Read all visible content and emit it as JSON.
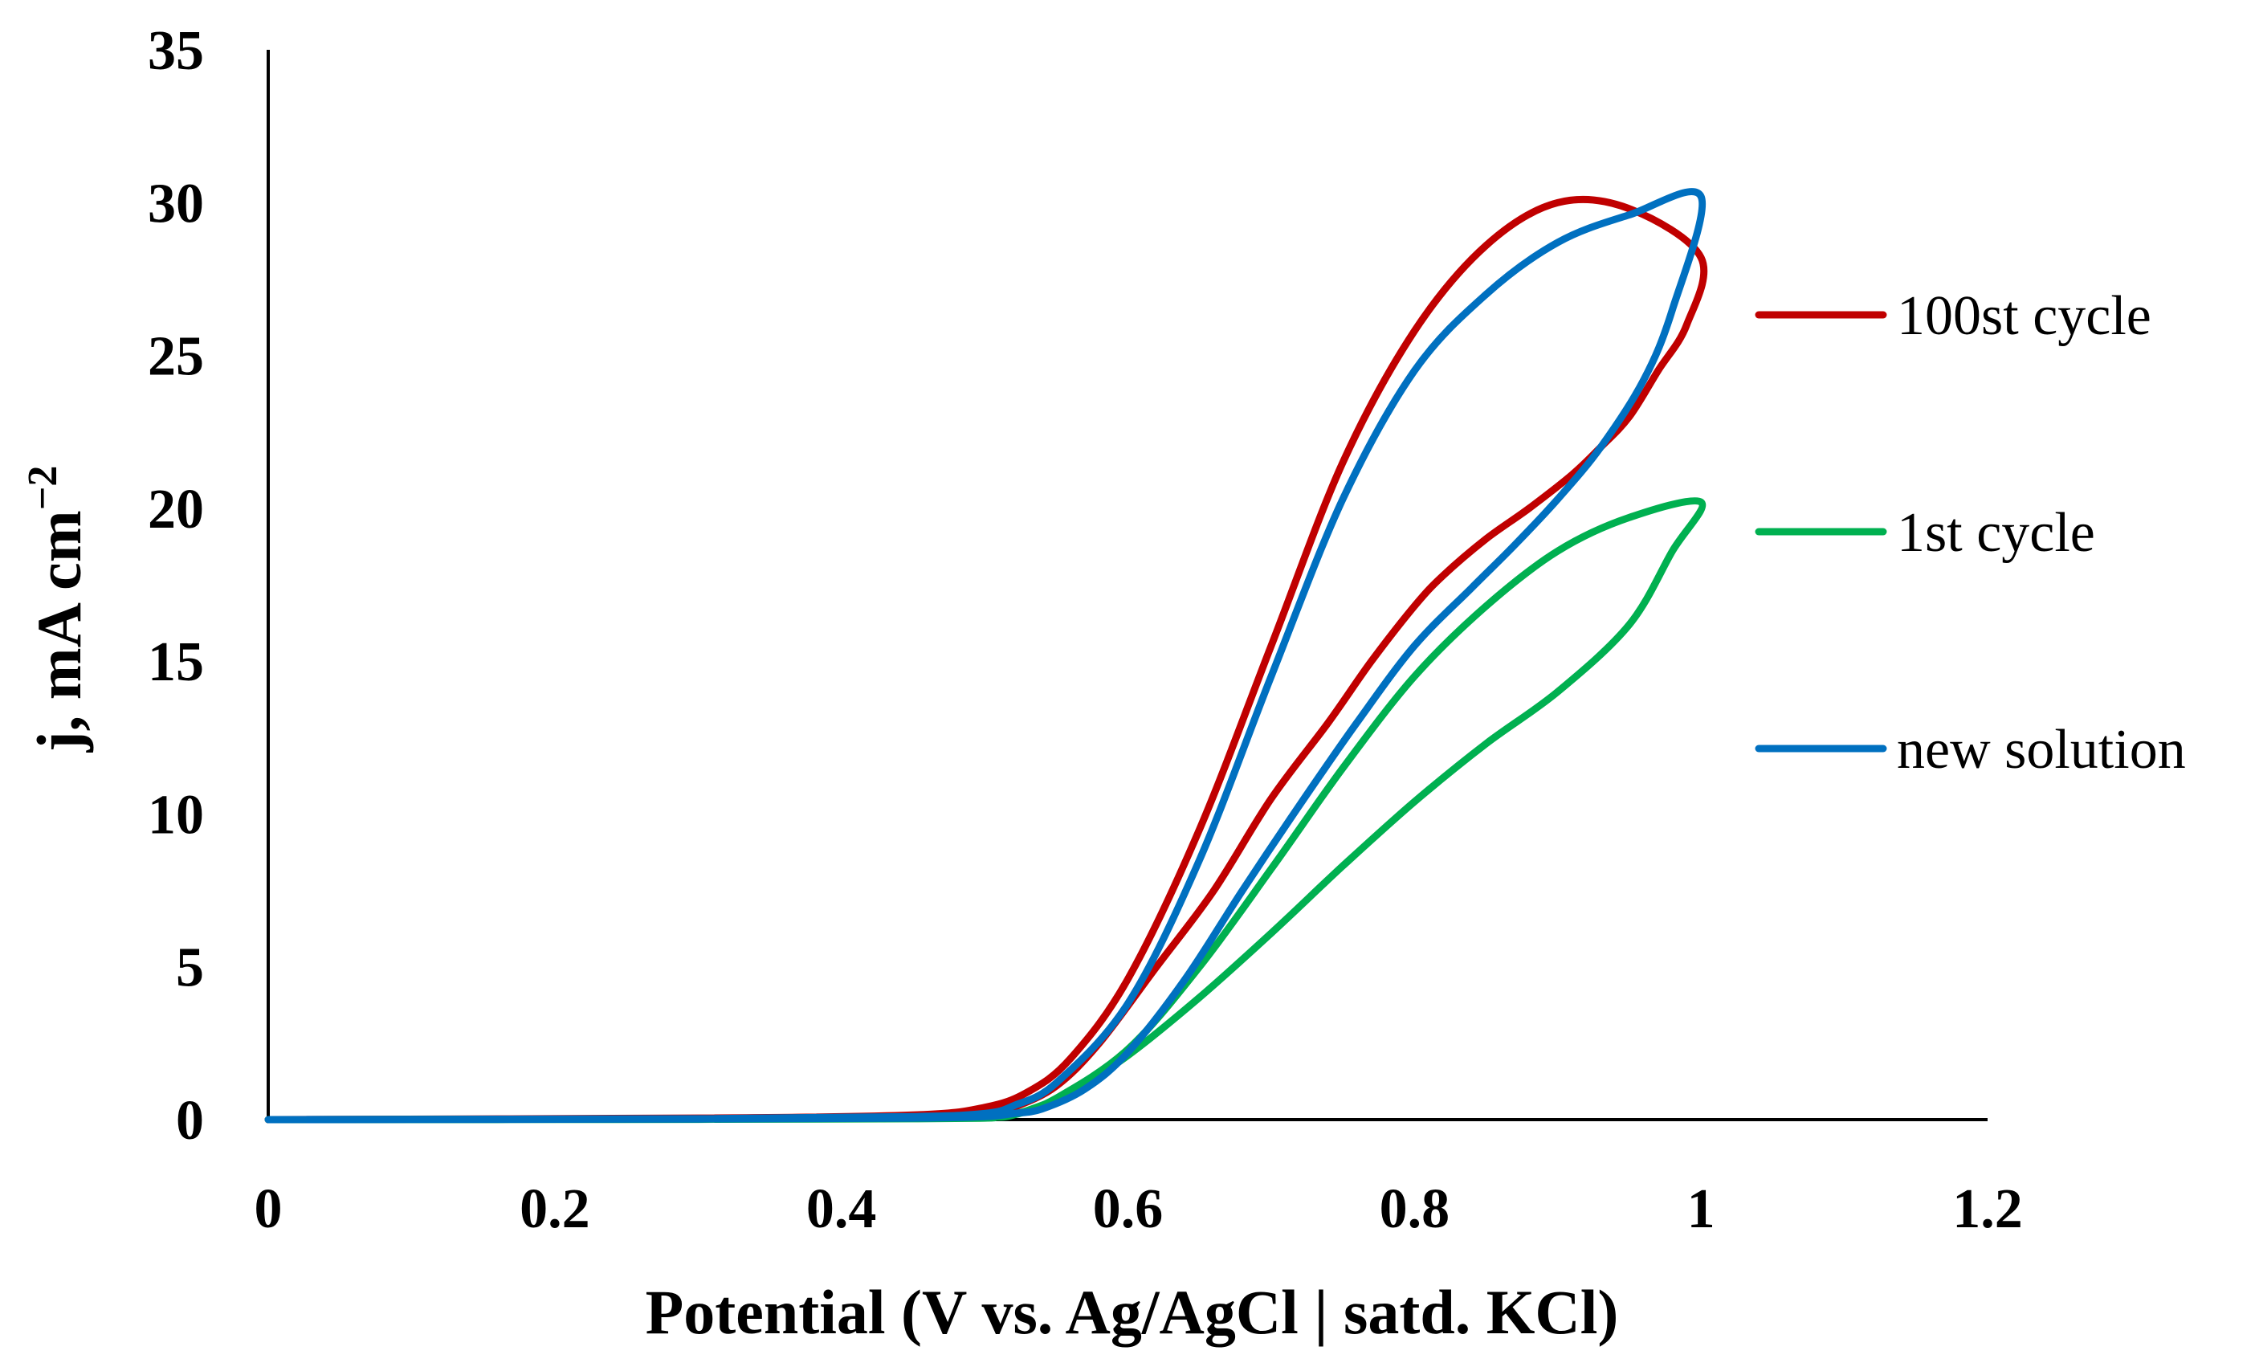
{
  "chart_data": {
    "type": "line",
    "xlabel": "Potential (V vs. Ag/AgCl | satd. KCl)",
    "ylabel": "j, mA cm",
    "ylabel_sup": "−2",
    "xlim": [
      0,
      1.2
    ],
    "ylim": [
      0,
      35
    ],
    "xticks": [
      0,
      0.2,
      0.4,
      0.6,
      0.8,
      1,
      1.2
    ],
    "xtick_labels": [
      "0",
      "0.2",
      "0.4",
      "0.6",
      "0.8",
      "1",
      "1.2"
    ],
    "yticks": [
      0,
      5,
      10,
      15,
      20,
      25,
      30,
      35
    ],
    "ytick_labels": [
      "0",
      "5",
      "10",
      "15",
      "20",
      "25",
      "30",
      "35"
    ],
    "grid": false,
    "legend_position": "right",
    "series": [
      {
        "name": "100st cycle",
        "color": "#C00000",
        "x": [
          0,
          0.3,
          0.45,
          0.5,
          0.53,
          0.56,
          0.6,
          0.65,
          0.7,
          0.75,
          0.8,
          0.85,
          0.9,
          0.95,
          1.0,
          0.99,
          0.97,
          0.95,
          0.93,
          0.91,
          0.88,
          0.85,
          0.82,
          0.8,
          0.77,
          0.74,
          0.7,
          0.66,
          0.62,
          0.58,
          0.55,
          0.52,
          0.5,
          0.45,
          0.3,
          0
        ],
        "y": [
          0,
          0.05,
          0.15,
          0.4,
          0.9,
          2.0,
          4.6,
          9.5,
          15.5,
          21.5,
          25.8,
          28.6,
          30.0,
          29.8,
          28.2,
          26.0,
          24.5,
          23.0,
          22.0,
          21.1,
          20.0,
          19.0,
          17.8,
          16.8,
          15.0,
          13.0,
          10.5,
          7.5,
          5.0,
          2.5,
          1.1,
          0.4,
          0.2,
          0.1,
          0.04,
          0
        ]
      },
      {
        "name": "1st cycle",
        "color": "#00B050",
        "x": [
          0,
          0.3,
          0.45,
          0.5,
          0.52,
          0.55,
          0.6,
          0.65,
          0.7,
          0.75,
          0.8,
          0.85,
          0.9,
          0.95,
          1.0,
          0.98,
          0.95,
          0.9,
          0.85,
          0.8,
          0.75,
          0.7,
          0.65,
          0.6,
          0.56,
          0.53,
          0.51,
          0.5,
          0.45,
          0.3,
          0
        ],
        "y": [
          0,
          0.02,
          0.05,
          0.08,
          0.15,
          0.7,
          2.3,
          5.0,
          8.2,
          11.5,
          14.5,
          16.8,
          18.6,
          19.7,
          20.2,
          18.6,
          16.2,
          14.0,
          12.3,
          10.4,
          8.3,
          6.1,
          4.0,
          2.1,
          0.9,
          0.3,
          0.1,
          0.05,
          0.03,
          0.01,
          0
        ]
      },
      {
        "name": "new solution",
        "color": "#0070C0",
        "x": [
          0,
          0.3,
          0.45,
          0.5,
          0.52,
          0.55,
          0.6,
          0.65,
          0.7,
          0.75,
          0.8,
          0.85,
          0.9,
          0.95,
          1.0,
          0.98,
          0.96,
          0.93,
          0.9,
          0.87,
          0.84,
          0.8,
          0.76,
          0.72,
          0.68,
          0.64,
          0.6,
          0.57,
          0.54,
          0.52,
          0.5,
          0.45,
          0.3,
          0
        ],
        "y": [
          0,
          0.03,
          0.1,
          0.2,
          0.45,
          1.2,
          3.8,
          8.5,
          14.5,
          20.3,
          24.5,
          27.0,
          28.7,
          29.6,
          30.2,
          26.5,
          24.2,
          22.0,
          20.3,
          18.8,
          17.4,
          15.5,
          13.0,
          10.3,
          7.5,
          4.6,
          2.2,
          1.0,
          0.35,
          0.2,
          0.1,
          0.05,
          0.02,
          0
        ]
      }
    ]
  }
}
